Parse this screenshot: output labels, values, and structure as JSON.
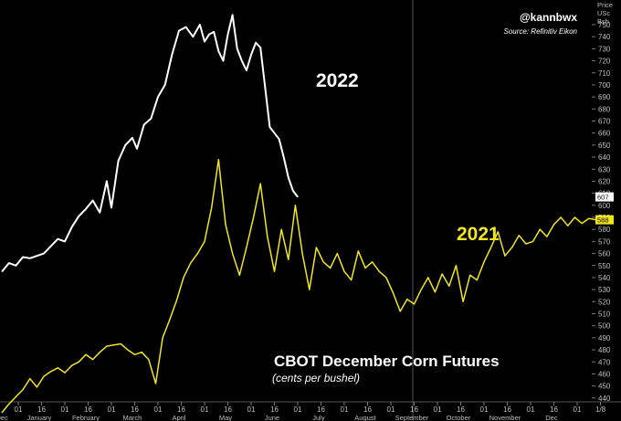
{
  "header": {
    "handle": "@kannbwx",
    "source": "Source: Refinitiv Eikon",
    "unit_line1": "Price",
    "unit_line2": "USc",
    "unit_line3": "Bsh"
  },
  "chart_data": {
    "type": "line",
    "title": "CBOT December Corn Futures",
    "subtitle": "(cents per bushel)",
    "ylabel": "Price USc Bsh",
    "ylim": [
      425,
      760
    ],
    "yticks": [
      430,
      440,
      450,
      460,
      470,
      480,
      490,
      500,
      510,
      520,
      530,
      540,
      550,
      560,
      570,
      580,
      590,
      600,
      610,
      620,
      630,
      640,
      650,
      660,
      670,
      680,
      690,
      700,
      710,
      720,
      730,
      740,
      750
    ],
    "xlim": [
      0,
      12.9
    ],
    "x_ticks": [
      {
        "x": 0.0,
        "label": "01"
      },
      {
        "x": 0.5,
        "label": "16"
      },
      {
        "x": 1.0,
        "label": "01"
      },
      {
        "x": 1.5,
        "label": "16"
      },
      {
        "x": 2.0,
        "label": "01"
      },
      {
        "x": 2.5,
        "label": "16"
      },
      {
        "x": 3.0,
        "label": "01"
      },
      {
        "x": 3.5,
        "label": "16"
      },
      {
        "x": 4.0,
        "label": "01"
      },
      {
        "x": 4.5,
        "label": "16"
      },
      {
        "x": 5.0,
        "label": "01"
      },
      {
        "x": 5.5,
        "label": "16"
      },
      {
        "x": 6.0,
        "label": "01"
      },
      {
        "x": 6.5,
        "label": "16"
      },
      {
        "x": 7.0,
        "label": "01"
      },
      {
        "x": 7.5,
        "label": "16"
      },
      {
        "x": 8.0,
        "label": "01"
      },
      {
        "x": 8.5,
        "label": "16"
      },
      {
        "x": 9.0,
        "label": "01"
      },
      {
        "x": 9.5,
        "label": "16"
      },
      {
        "x": 10.0,
        "label": "01"
      },
      {
        "x": 10.5,
        "label": "16"
      },
      {
        "x": 11.0,
        "label": "01"
      },
      {
        "x": 11.5,
        "label": "16"
      },
      {
        "x": 12.0,
        "label": "01"
      },
      {
        "x": 12.5,
        "label": "1/8"
      }
    ],
    "months": [
      {
        "x": -0.35,
        "label": "Dec"
      },
      {
        "x": 0.45,
        "label": "January"
      },
      {
        "x": 1.45,
        "label": "February"
      },
      {
        "x": 2.45,
        "label": "March"
      },
      {
        "x": 3.45,
        "label": "April"
      },
      {
        "x": 4.45,
        "label": "May"
      },
      {
        "x": 5.45,
        "label": "June"
      },
      {
        "x": 6.45,
        "label": "July"
      },
      {
        "x": 7.45,
        "label": "August"
      },
      {
        "x": 8.45,
        "label": "September"
      },
      {
        "x": 9.45,
        "label": "October"
      },
      {
        "x": 10.45,
        "label": "November"
      },
      {
        "x": 11.45,
        "label": "Dec"
      }
    ],
    "series": [
      {
        "name": "2022",
        "color": "#ffffff",
        "last_value": "607",
        "x": [
          -0.35,
          -0.2,
          -0.05,
          0.1,
          0.25,
          0.4,
          0.55,
          0.7,
          0.85,
          1.0,
          1.15,
          1.3,
          1.45,
          1.6,
          1.75,
          1.9,
          2.0,
          2.15,
          2.3,
          2.45,
          2.55,
          2.7,
          2.85,
          3.0,
          3.15,
          3.3,
          3.45,
          3.6,
          3.75,
          3.9,
          4.0,
          4.1,
          4.2,
          4.3,
          4.4,
          4.5,
          4.6,
          4.7,
          4.8,
          4.9,
          5.0,
          5.1,
          5.2,
          5.3,
          5.4,
          5.5,
          5.6,
          5.7,
          5.8,
          5.9,
          6.0
        ],
        "values": [
          545,
          552,
          550,
          557,
          556,
          558,
          560,
          566,
          572,
          570,
          582,
          591,
          597,
          604,
          594,
          620,
          598,
          637,
          650,
          656,
          647,
          667,
          672,
          690,
          700,
          725,
          745,
          748,
          740,
          750,
          736,
          742,
          744,
          728,
          720,
          742,
          758,
          730,
          720,
          712,
          725,
          735,
          731,
          698,
          665,
          660,
          655,
          640,
          623,
          612,
          607
        ]
      },
      {
        "name": "2021",
        "color": "#f2e61f",
        "last_value": "588",
        "x": [
          -0.35,
          -0.2,
          -0.05,
          0.1,
          0.25,
          0.4,
          0.55,
          0.7,
          0.85,
          1.0,
          1.15,
          1.3,
          1.45,
          1.6,
          1.75,
          1.9,
          2.05,
          2.2,
          2.35,
          2.5,
          2.65,
          2.8,
          2.95,
          3.1,
          3.25,
          3.4,
          3.55,
          3.7,
          3.85,
          4.0,
          4.15,
          4.3,
          4.45,
          4.6,
          4.75,
          4.9,
          5.05,
          5.2,
          5.35,
          5.5,
          5.65,
          5.8,
          5.95,
          6.1,
          6.25,
          6.4,
          6.55,
          6.7,
          6.85,
          7.0,
          7.15,
          7.3,
          7.45,
          7.6,
          7.75,
          7.9,
          8.05,
          8.2,
          8.35,
          8.5,
          8.65,
          8.8,
          8.95,
          9.1,
          9.25,
          9.4,
          9.55,
          9.7,
          9.85,
          10.0,
          10.15,
          10.3,
          10.45,
          10.6,
          10.75,
          10.9,
          11.05,
          11.2,
          11.35,
          11.5,
          11.65,
          11.8,
          11.95,
          12.1,
          12.25,
          12.4
        ],
        "values": [
          428,
          435,
          441,
          447,
          456,
          449,
          458,
          462,
          465,
          461,
          467,
          470,
          476,
          472,
          478,
          483,
          484,
          485,
          480,
          476,
          478,
          472,
          452,
          490,
          505,
          521,
          540,
          552,
          560,
          570,
          598,
          638,
          584,
          560,
          542,
          565,
          590,
          618,
          574,
          545,
          580,
          555,
          600,
          560,
          530,
          565,
          553,
          548,
          560,
          545,
          538,
          562,
          548,
          553,
          545,
          540,
          527,
          512,
          522,
          518,
          530,
          540,
          528,
          543,
          533,
          550,
          520,
          542,
          538,
          553,
          565,
          578,
          558,
          565,
          575,
          568,
          570,
          580,
          574,
          584,
          590,
          583,
          590,
          585,
          589,
          588
        ]
      }
    ],
    "grid": false,
    "legend": "inline-labels"
  }
}
